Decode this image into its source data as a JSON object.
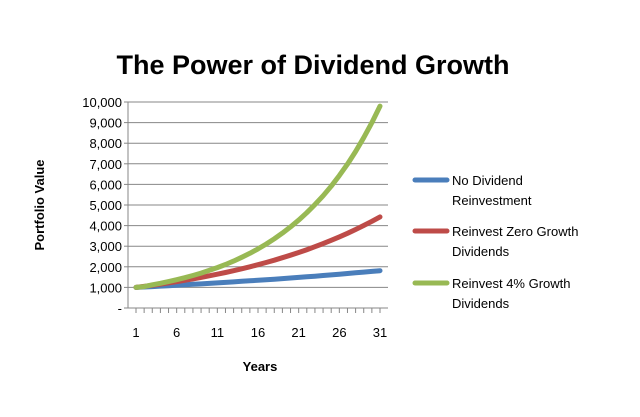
{
  "chart_data": {
    "type": "line",
    "title": "The Power of Dividend Growth",
    "xlabel": "Years",
    "ylabel": "Portfolio Value",
    "x": [
      1,
      2,
      3,
      4,
      5,
      6,
      7,
      8,
      9,
      10,
      11,
      12,
      13,
      14,
      15,
      16,
      17,
      18,
      19,
      20,
      21,
      22,
      23,
      24,
      25,
      26,
      27,
      28,
      29,
      30,
      31
    ],
    "x_tick_labels": [
      "1",
      "6",
      "11",
      "16",
      "21",
      "26",
      "31"
    ],
    "ylim": [
      0,
      10000
    ],
    "y_tick_labels": [
      "-",
      "1,000",
      "2,000",
      "3,000",
      "4,000",
      "5,000",
      "6,000",
      "7,000",
      "8,000",
      "9,000",
      "10,000"
    ],
    "grid": true,
    "legend_position": "right",
    "series": [
      {
        "name": "No Dividend Reinvestment",
        "color": "#4a7ebb",
        "values": [
          1000,
          1020,
          1040,
          1061,
          1082,
          1104,
          1126,
          1149,
          1172,
          1195,
          1219,
          1243,
          1268,
          1294,
          1319,
          1346,
          1373,
          1400,
          1428,
          1457,
          1486,
          1516,
          1546,
          1577,
          1608,
          1641,
          1673,
          1707,
          1741,
          1776,
          1811
        ]
      },
      {
        "name": "Reinvest Zero Growth Dividends",
        "color": "#be4b48",
        "values": [
          1000,
          1051,
          1104,
          1160,
          1219,
          1281,
          1346,
          1415,
          1486,
          1562,
          1641,
          1725,
          1813,
          1905,
          2001,
          2103,
          2210,
          2322,
          2440,
          2564,
          2694,
          2831,
          2975,
          3126,
          3285,
          3452,
          3627,
          3812,
          4005,
          4209,
          4423
        ]
      },
      {
        "name": "Reinvest 4% Growth Dividends",
        "color": "#98b954",
        "values": [
          1000,
          1041,
          1126,
          1200,
          1282,
          1372,
          1470,
          1578,
          1695,
          1823,
          1962,
          2114,
          2279,
          2459,
          2656,
          2870,
          3103,
          3357,
          3634,
          3936,
          4266,
          4626,
          5018,
          5447,
          5915,
          6427,
          6986,
          7598,
          8268,
          8999,
          9800
        ]
      }
    ]
  }
}
